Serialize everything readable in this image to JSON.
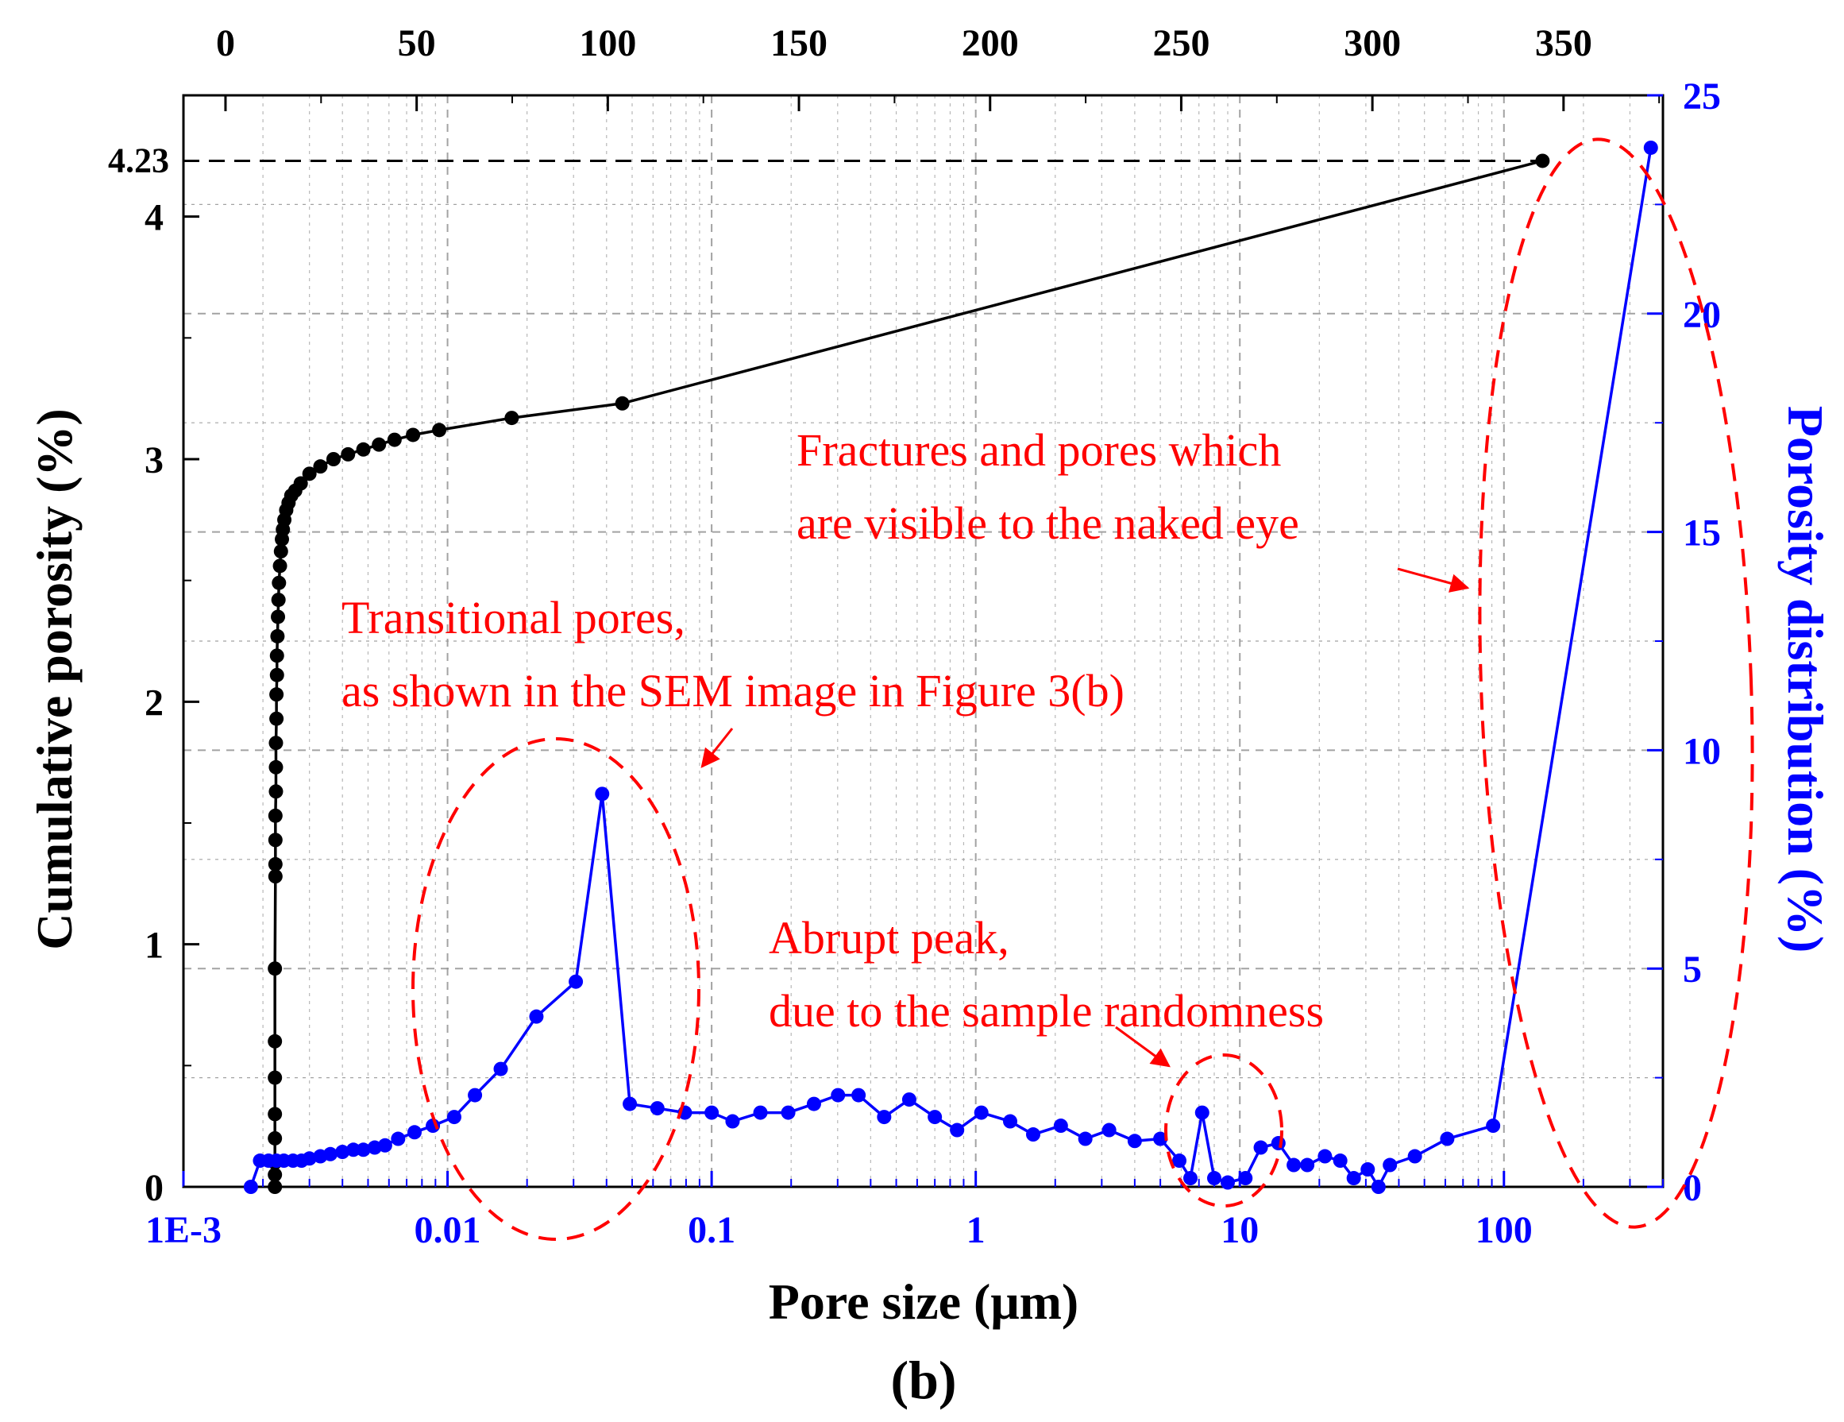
{
  "chart_data": {
    "type": "line",
    "caption": "(b)",
    "xlabel": "Pore size (μm)",
    "ylabel_left": "Cumulative porosity (%)",
    "ylabel_right": "Porosity distribution (%)",
    "x_scale": "log",
    "xlim": [
      0.001,
      400
    ],
    "ylim_left": [
      0,
      4.5
    ],
    "ylim_right": [
      0,
      25
    ],
    "x_ticks": [
      {
        "value": 0.001,
        "label": "1E-3"
      },
      {
        "value": 0.01,
        "label": "0.01"
      },
      {
        "value": 0.1,
        "label": "0.1"
      },
      {
        "value": 1,
        "label": "1"
      },
      {
        "value": 10,
        "label": "10"
      },
      {
        "value": 100,
        "label": "100"
      }
    ],
    "top_axis": {
      "ticks": [
        "0",
        "50",
        "100",
        "150",
        "200",
        "250",
        "300",
        "350"
      ],
      "range": [
        -11,
        376
      ]
    },
    "y_left_ticks": [
      "0",
      "1",
      "2",
      "3",
      "4"
    ],
    "y_right_ticks": [
      "0",
      "5",
      "10",
      "15",
      "20",
      "25"
    ],
    "reference": {
      "label": "4.23",
      "value": 4.23
    },
    "colors": {
      "cumulative": "#000000",
      "distribution": "#0000ff",
      "annotation": "#ff0000",
      "grid": "#999999"
    },
    "series": [
      {
        "name": "Cumulative porosity",
        "axis": "left",
        "x": [
          0.00222,
          0.00222,
          0.00222,
          0.00222,
          0.00222,
          0.00222,
          0.00222,
          0.00222,
          0.00223,
          0.00223,
          0.00223,
          0.00223,
          0.00224,
          0.00224,
          0.00224,
          0.00225,
          0.00225,
          0.00226,
          0.00226,
          0.00227,
          0.00228,
          0.00229,
          0.0023,
          0.00232,
          0.00234,
          0.00236,
          0.00238,
          0.00241,
          0.00245,
          0.0025,
          0.00256,
          0.00265,
          0.00278,
          0.003,
          0.0033,
          0.0037,
          0.0042,
          0.0048,
          0.0055,
          0.0063,
          0.0074,
          0.0093,
          0.0175,
          0.0459,
          140
        ],
        "y": [
          0.0,
          0.05,
          0.1,
          0.2,
          0.3,
          0.45,
          0.6,
          0.9,
          1.28,
          1.33,
          1.43,
          1.53,
          1.63,
          1.73,
          1.83,
          1.93,
          2.03,
          2.11,
          2.19,
          2.27,
          2.35,
          2.42,
          2.49,
          2.56,
          2.62,
          2.67,
          2.71,
          2.75,
          2.79,
          2.82,
          2.85,
          2.87,
          2.9,
          2.94,
          2.97,
          3.0,
          3.02,
          3.04,
          3.06,
          3.08,
          3.1,
          3.12,
          3.17,
          3.23,
          4.23
        ]
      },
      {
        "name": "Porosity distribution",
        "axis": "right",
        "x": [
          0.0018,
          0.00195,
          0.0021,
          0.00225,
          0.0024,
          0.0026,
          0.0028,
          0.003,
          0.0033,
          0.0036,
          0.004,
          0.0044,
          0.0048,
          0.0053,
          0.0058,
          0.0065,
          0.0075,
          0.0088,
          0.0106,
          0.0127,
          0.0159,
          0.0217,
          0.0306,
          0.0385,
          0.049,
          0.0623,
          0.0792,
          0.1,
          0.12,
          0.153,
          0.195,
          0.244,
          0.301,
          0.36,
          0.45,
          0.56,
          0.7,
          0.85,
          1.05,
          1.35,
          1.65,
          2.1,
          2.6,
          3.2,
          4.0,
          5.0,
          5.9,
          6.5,
          7.2,
          8.0,
          9.0,
          10.5,
          12.0,
          14.0,
          16.0,
          18.0,
          21.0,
          24.0,
          27.0,
          30.5,
          33.5,
          37.0,
          46.0,
          61.0,
          91.0,
          360.0
        ],
        "y": [
          0.0,
          0.6,
          0.6,
          0.6,
          0.6,
          0.6,
          0.6,
          0.65,
          0.7,
          0.75,
          0.8,
          0.85,
          0.85,
          0.9,
          0.95,
          1.1,
          1.25,
          1.4,
          1.6,
          2.1,
          2.7,
          3.9,
          4.7,
          9.0,
          1.9,
          1.8,
          1.7,
          1.7,
          1.5,
          1.7,
          1.7,
          1.9,
          2.1,
          2.1,
          1.6,
          2.0,
          1.6,
          1.3,
          1.7,
          1.5,
          1.2,
          1.4,
          1.1,
          1.3,
          1.05,
          1.1,
          0.6,
          0.2,
          1.7,
          0.2,
          0.1,
          0.2,
          0.9,
          1.0,
          0.5,
          0.5,
          0.7,
          0.6,
          0.2,
          0.4,
          0.0,
          0.5,
          0.7,
          1.1,
          1.4,
          23.8
        ]
      }
    ],
    "annotations": [
      {
        "name": "fractures",
        "lines": [
          "Fractures and pores which",
          "are visible to the naked eye"
        ]
      },
      {
        "name": "transitional",
        "lines": [
          "Transitional pores,",
          "as shown in the SEM image in Figure 3(b)"
        ]
      },
      {
        "name": "abrupt-peak",
        "lines": [
          "Abrupt peak,",
          "due to the sample randomness"
        ]
      }
    ]
  }
}
